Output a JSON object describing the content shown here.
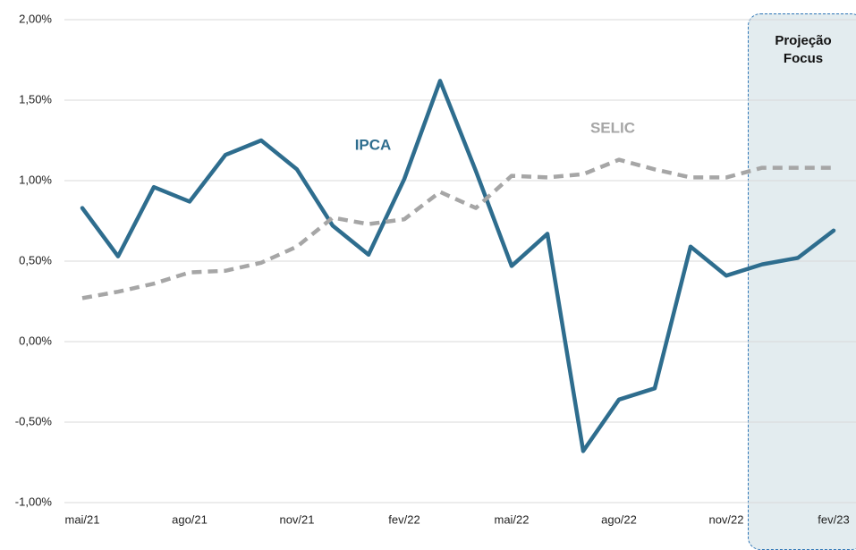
{
  "chart_data": {
    "type": "line",
    "categories": [
      "mai/21",
      null,
      null,
      "ago/21",
      null,
      null,
      "nov/21",
      null,
      null,
      "fev/22",
      null,
      null,
      "mai/22",
      null,
      null,
      "ago/22",
      null,
      null,
      "nov/22",
      null,
      null,
      "fev/23"
    ],
    "series": [
      {
        "name": "IPCA",
        "color": "#2e6d8e",
        "dashed": false,
        "values": [
          0.83,
          0.53,
          0.96,
          0.87,
          1.16,
          1.25,
          1.07,
          0.72,
          0.54,
          1.01,
          1.62,
          1.06,
          0.47,
          0.67,
          -0.68,
          -0.36,
          -0.29,
          0.59,
          0.41,
          0.48,
          0.52,
          0.69
        ]
      },
      {
        "name": "SELIC",
        "color": "#a6a6a6",
        "dashed": true,
        "values": [
          0.27,
          0.31,
          0.36,
          0.43,
          0.44,
          0.49,
          0.59,
          0.77,
          0.73,
          0.76,
          0.93,
          0.83,
          1.03,
          1.02,
          1.04,
          1.13,
          1.07,
          1.02,
          1.02,
          1.08,
          1.08,
          1.08
        ]
      }
    ],
    "annotation": "Projeção Focus",
    "ylim": [
      -1.0,
      2.0
    ],
    "yticks": [
      {
        "value": -1.0,
        "label": "-1,00%"
      },
      {
        "value": -0.5,
        "label": "-0,50%"
      },
      {
        "value": 0,
        "label": "0,00%"
      },
      {
        "value": 0.5,
        "label": "0,50%"
      },
      {
        "value": 1.0,
        "label": "1,00%"
      },
      {
        "value": 1.5,
        "label": "1,50%"
      },
      {
        "value": 2.0,
        "label": "2,00%"
      }
    ],
    "grid": true
  }
}
